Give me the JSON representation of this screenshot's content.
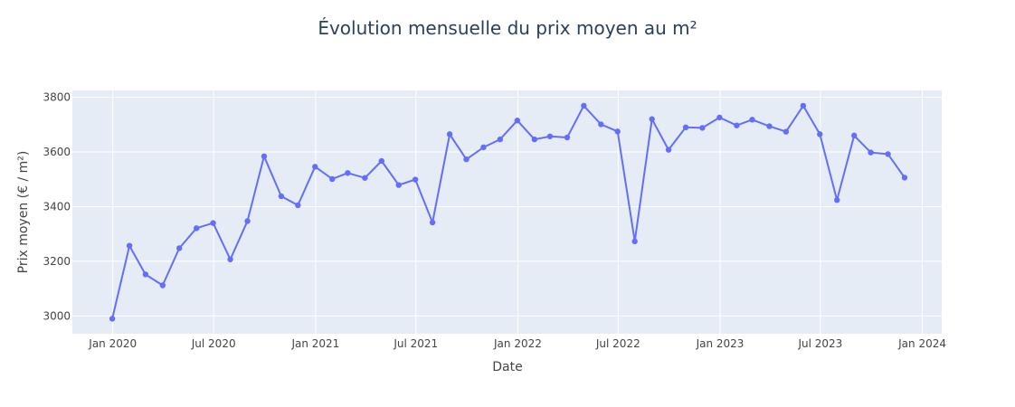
{
  "chart_data": {
    "type": "line",
    "title": "Évolution mensuelle du prix moyen au m²",
    "xlabel": "Date",
    "ylabel": "Prix moyen (€ / m²)",
    "x_tick_labels": [
      "Jan 2020",
      "Jul 2020",
      "Jan 2021",
      "Jul 2021",
      "Jan 2022",
      "Jul 2022",
      "Jan 2023",
      "Jul 2023",
      "Jan 2024"
    ],
    "x_tick_dates": [
      "2020-01-01",
      "2020-07-01",
      "2021-01-01",
      "2021-07-01",
      "2022-01-01",
      "2022-07-01",
      "2023-01-01",
      "2023-07-01",
      "2024-01-01"
    ],
    "y_tick_labels": [
      "3000",
      "3200",
      "3400",
      "3600",
      "3800"
    ],
    "y_ticks": [
      3000,
      3200,
      3400,
      3600,
      3800
    ],
    "xlim": [
      "2019-10-20",
      "2024-02-05"
    ],
    "ylim": [
      2935,
      3825
    ],
    "grid": true,
    "line_color": "#636efa",
    "plot_bg": "#e5ecf6",
    "x": [
      "2019-12-31",
      "2020-01-31",
      "2020-02-29",
      "2020-03-31",
      "2020-04-30",
      "2020-05-31",
      "2020-06-30",
      "2020-07-31",
      "2020-08-31",
      "2020-09-30",
      "2020-10-31",
      "2020-11-30",
      "2020-12-31",
      "2021-01-31",
      "2021-02-28",
      "2021-03-31",
      "2021-04-30",
      "2021-05-31",
      "2021-06-30",
      "2021-07-31",
      "2021-08-31",
      "2021-09-30",
      "2021-10-31",
      "2021-11-30",
      "2021-12-31",
      "2022-01-31",
      "2022-02-28",
      "2022-03-31",
      "2022-04-30",
      "2022-05-31",
      "2022-06-30",
      "2022-07-31",
      "2022-08-31",
      "2022-09-30",
      "2022-10-31",
      "2022-11-30",
      "2022-12-31",
      "2023-01-31",
      "2023-02-28",
      "2023-03-31",
      "2023-04-30",
      "2023-05-31",
      "2023-06-30",
      "2023-07-31",
      "2023-08-31",
      "2023-09-30",
      "2023-10-31",
      "2023-11-30"
    ],
    "y": [
      2990,
      3257,
      3152,
      3112,
      3248,
      3321,
      3340,
      3207,
      3347,
      3584,
      3438,
      3405,
      3546,
      3501,
      3523,
      3505,
      3567,
      3479,
      3499,
      3342,
      3665,
      3573,
      3617,
      3646,
      3715,
      3646,
      3657,
      3653,
      3769,
      3701,
      3675,
      3273,
      3720,
      3608,
      3690,
      3688,
      3726,
      3697,
      3718,
      3694,
      3674,
      3769,
      3665,
      3424,
      3660,
      3598,
      3592,
      3506
    ]
  }
}
